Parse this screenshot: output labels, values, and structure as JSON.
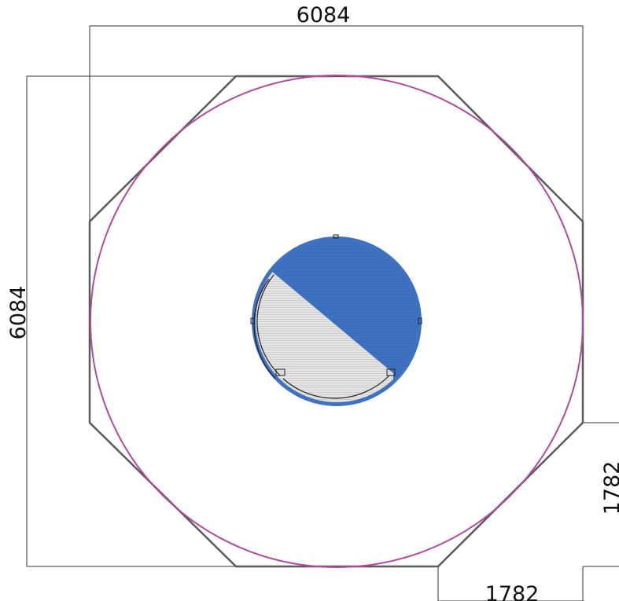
{
  "dimensions": {
    "overall_width": "6084",
    "overall_height": "6084",
    "corner_chamfer_vertical": "1782",
    "corner_chamfer_horizontal": "1782"
  },
  "colors": {
    "outline": "#5a5a5a",
    "circle": "#b04a9e",
    "dimension_line": "#333333",
    "core_blue": "#3e72c1",
    "core_grey": "#e4e4e4",
    "detail_line": "#222222"
  }
}
